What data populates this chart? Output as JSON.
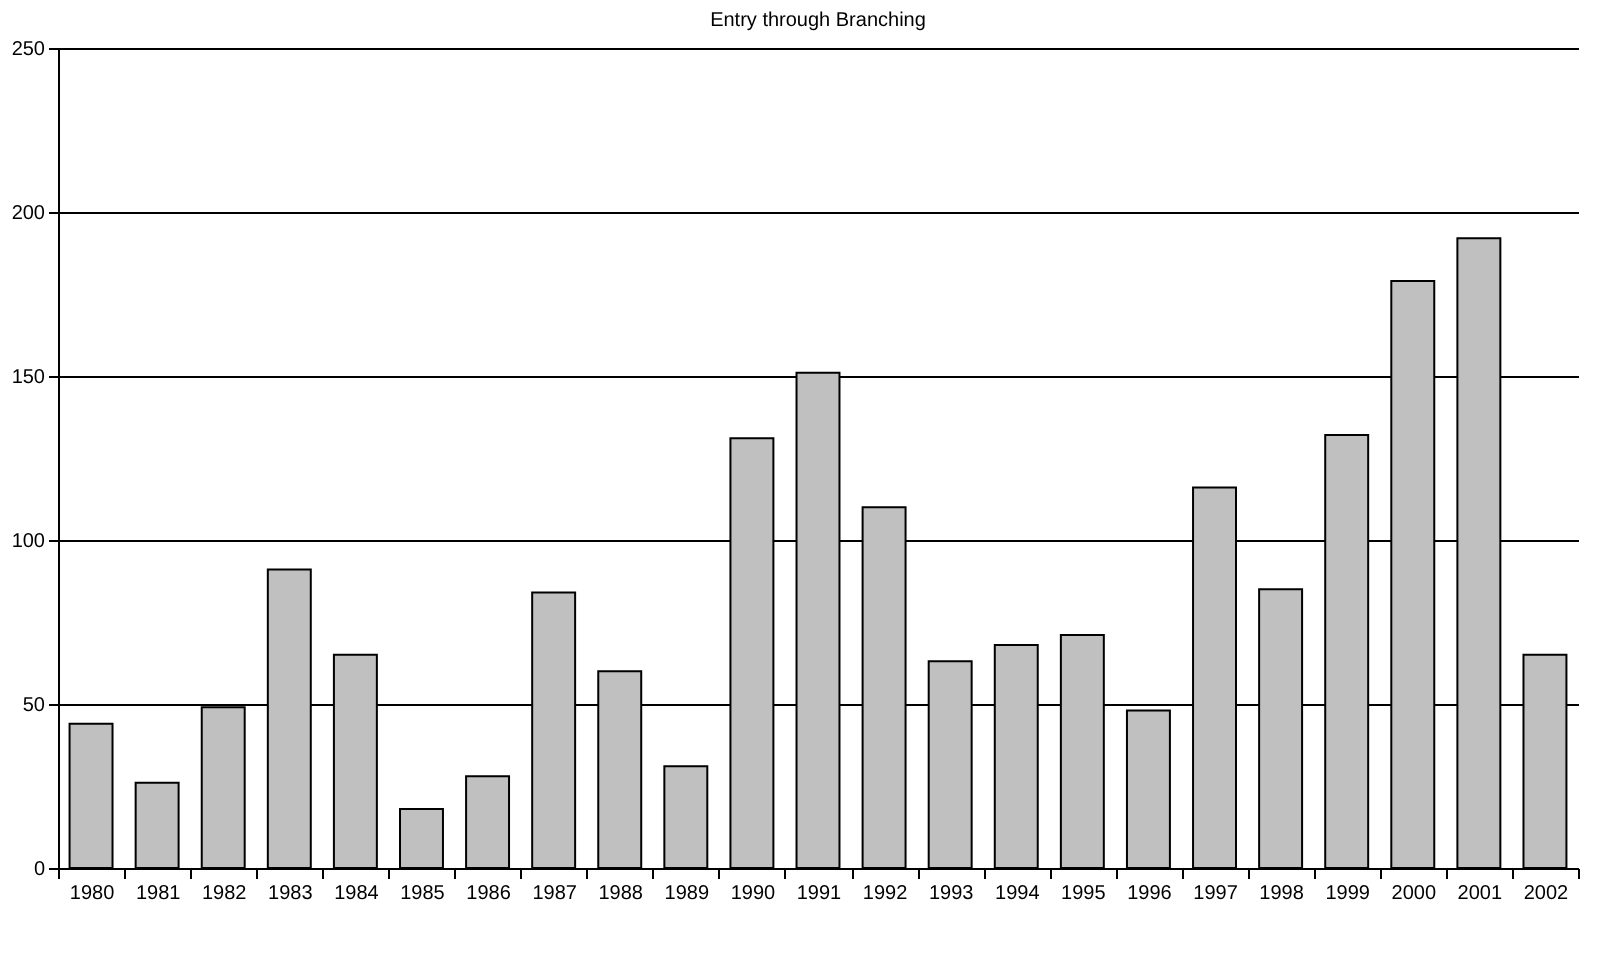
{
  "chart_data": {
    "type": "bar",
    "title": "Entry through Branching",
    "categories": [
      "1980",
      "1981",
      "1982",
      "1983",
      "1984",
      "1985",
      "1986",
      "1987",
      "1988",
      "1989",
      "1990",
      "1991",
      "1992",
      "1993",
      "1994",
      "1995",
      "1996",
      "1997",
      "1998",
      "1999",
      "2000",
      "2001",
      "2002"
    ],
    "values": [
      44,
      26,
      49,
      91,
      65,
      18,
      28,
      84,
      60,
      31,
      131,
      151,
      110,
      63,
      68,
      71,
      48,
      116,
      85,
      132,
      179,
      192,
      65
    ],
    "color": "#c0c0c0",
    "ylim": [
      0,
      250
    ],
    "yticks": [
      0,
      50,
      100,
      150,
      200,
      250
    ],
    "grid": "y"
  }
}
